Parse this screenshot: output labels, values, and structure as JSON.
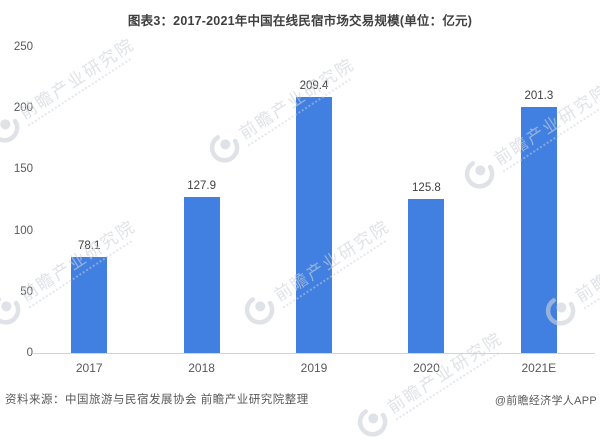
{
  "title": "图表3：2017-2021年中国在线民宿市场交易规模(单位：亿元)",
  "footer": {
    "source": "资料来源：中国旅游与民宿发展协会 前瞻产业研究院整理",
    "credit": "@前瞻经济学人APP"
  },
  "watermark": {
    "text": "前瞻产业研究院"
  },
  "colors": {
    "bar": "#4180E0",
    "title_text": "#3F3F3F",
    "axis_text": "#595959",
    "value_text": "#404040",
    "axis_line": "#D4D4D4",
    "watermark": "#CCD1D9"
  },
  "chart_data": {
    "type": "bar",
    "title": "图表3：2017-2021年中国在线民宿市场交易规模(单位：亿元)",
    "unit": "亿元",
    "categories": [
      "2017",
      "2018",
      "2019",
      "2020",
      "2021E"
    ],
    "values": [
      78.1,
      127.9,
      209.4,
      125.8,
      201.3
    ],
    "xlabel": "",
    "ylabel": "",
    "ylim": [
      0,
      250
    ],
    "yticks": [
      250,
      200,
      150,
      100,
      50,
      0
    ],
    "grid": false,
    "legend": false,
    "bar_color": "#4180E0"
  }
}
